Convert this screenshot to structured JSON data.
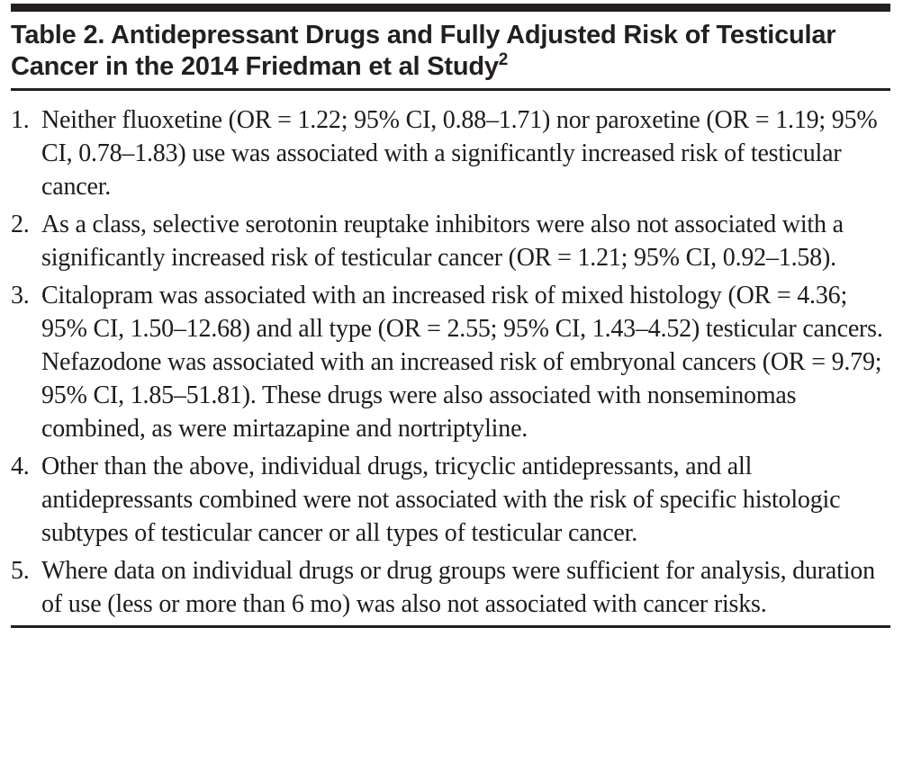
{
  "table": {
    "title": "Table 2. Antidepressant Drugs and Fully Adjusted Risk of Testicular Cancer in the 2014 Friedman et al Study",
    "title_superscript": "2",
    "items": [
      {
        "number": "1.",
        "text": "Neither fluoxetine (OR = 1.22; 95% CI, 0.88–1.71) nor paroxetine (OR = 1.19; 95% CI, 0.78–1.83) use was associated with a significantly increased risk of testicular cancer."
      },
      {
        "number": "2.",
        "text": "As a class, selective serotonin reuptake inhibitors were also not associated with a significantly increased risk of testicular cancer (OR = 1.21; 95% CI, 0.92–1.58)."
      },
      {
        "number": "3.",
        "text": "Citalopram was associated with an increased risk of mixed histology (OR = 4.36; 95% CI, 1.50–12.68) and all type (OR = 2.55; 95% CI, 1.43–4.52) testicular cancers. Nefazodone was associated with an increased risk of embryonal cancers (OR = 9.79; 95% CI, 1.85–51.81). These drugs were also associated with nonseminomas combined, as were mirtazapine and nortriptyline."
      },
      {
        "number": "4.",
        "text": "Other than the above, individual drugs, tricyclic antidepressants, and all antidepressants combined were not associated with the risk of specific histologic subtypes of testicular cancer or all types of testicular cancer."
      },
      {
        "number": "5.",
        "text": "Where data on individual drugs or drug groups were sufficient for analysis, duration of use (less or more than 6 mo) was also not associated with cancer risks."
      }
    ],
    "colors": {
      "text": "#1c1c1c",
      "title_text": "#231f20",
      "rule": "#231f20",
      "background": "#ffffff"
    }
  }
}
